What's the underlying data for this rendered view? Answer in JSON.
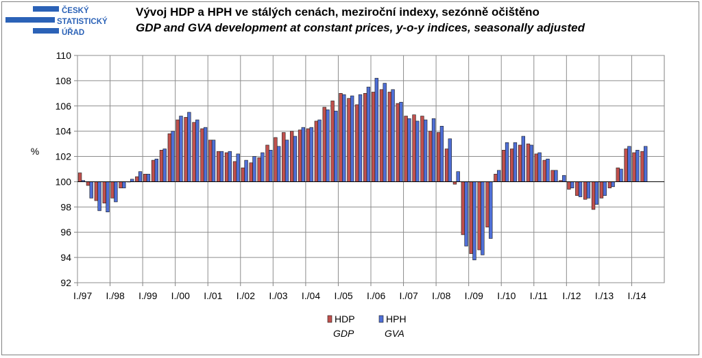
{
  "header": {
    "logo_lines": [
      "ČESKÝ",
      "STATISTICKÝ",
      "ÚŘAD"
    ],
    "title_cz": "Vývoj HDP a HPH ve stálých cenách, meziroční indexy, sezónně očištěno",
    "title_en": "GDP and GVA development at constant prices, y-o-y indices, seasonally adjusted"
  },
  "colors": {
    "logo": "#2b62b7",
    "hdp": "#c0504d",
    "hph": "#4f6fd6",
    "grid": "#8c8c8c",
    "plot_bg": "#ffffff"
  },
  "chart_data": {
    "type": "bar",
    "ylabel": "%",
    "ylim": [
      92,
      110
    ],
    "yticks": [
      92,
      94,
      96,
      98,
      100,
      102,
      104,
      106,
      108,
      110
    ],
    "baseline": 100,
    "grid": true,
    "legend_position": "bottom-center",
    "legend": [
      {
        "name": "HDP",
        "sub": "GDP"
      },
      {
        "name": "HPH",
        "sub": "GVA"
      }
    ],
    "year_labels": [
      "I./97",
      "I./98",
      "I./99",
      "I./00",
      "I./01",
      "I./02",
      "I./03",
      "I./04",
      "I./05",
      "I./06",
      "I./07",
      "I./08",
      "I./09",
      "I./10",
      "I./11",
      "I./12",
      "I./13",
      "I./14"
    ],
    "series": [
      {
        "name": "HDP",
        "values": [
          100.7,
          99.7,
          98.5,
          98.3,
          98.7,
          99.5,
          100.0,
          100.4,
          100.6,
          101.7,
          102.5,
          103.8,
          104.9,
          105.1,
          104.7,
          104.2,
          103.3,
          102.4,
          102.3,
          101.6,
          101.1,
          101.5,
          101.9,
          102.9,
          103.5,
          103.9,
          104.0,
          104.1,
          104.2,
          104.8,
          105.9,
          106.4,
          107.0,
          106.6,
          106.1,
          107.0,
          107.1,
          107.3,
          107.1,
          106.2,
          105.2,
          105.3,
          105.2,
          104.0,
          103.9,
          102.6,
          99.8,
          95.8,
          94.3,
          94.6,
          96.4,
          100.6,
          102.5,
          102.6,
          102.9,
          103.0,
          102.2,
          101.7,
          100.9,
          100.1,
          99.4,
          98.9,
          98.6,
          97.8,
          98.7,
          99.5,
          101.1,
          102.6,
          102.3,
          102.4
        ]
      },
      {
        "name": "HPH",
        "values": [
          100.1,
          98.7,
          97.7,
          97.6,
          98.4,
          99.5,
          100.2,
          100.8,
          100.6,
          101.8,
          102.6,
          104.0,
          105.2,
          105.5,
          104.9,
          104.3,
          103.3,
          102.4,
          102.4,
          102.2,
          101.7,
          102.0,
          102.3,
          102.5,
          102.8,
          103.3,
          103.6,
          104.3,
          104.3,
          104.9,
          105.7,
          105.6,
          106.9,
          106.8,
          106.9,
          107.5,
          108.2,
          107.8,
          107.3,
          106.3,
          105.0,
          104.8,
          104.9,
          105.0,
          104.4,
          103.4,
          100.8,
          94.9,
          93.8,
          94.2,
          95.5,
          100.9,
          103.1,
          103.1,
          103.6,
          102.9,
          102.3,
          101.8,
          100.9,
          100.5,
          99.5,
          98.8,
          98.7,
          98.2,
          98.9,
          99.6,
          101.0,
          102.8,
          102.5,
          102.8
        ]
      }
    ]
  }
}
